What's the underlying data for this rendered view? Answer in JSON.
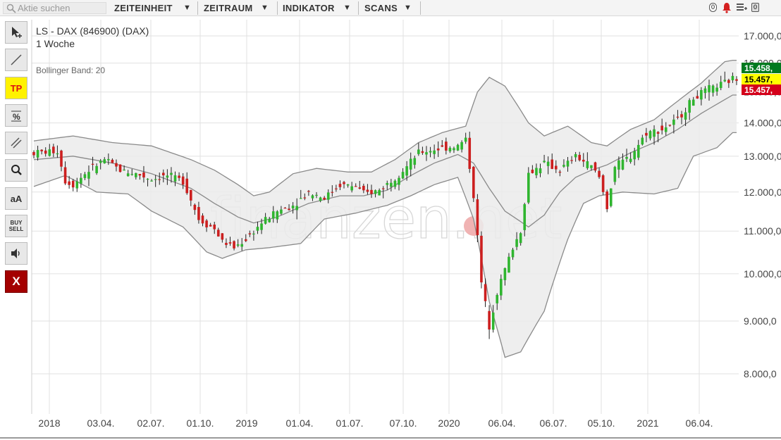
{
  "toolbar": {
    "search_placeholder": "Aktie suchen",
    "menus": [
      "ZEITEINHEIT",
      "ZEITRAUM",
      "INDIKATOR",
      "SCANS"
    ],
    "badge_alerts": "0",
    "badge_lists": "0"
  },
  "tools": {
    "pointer": "pointer-icon",
    "line": "line-icon",
    "tp": "TP",
    "percent": "%",
    "parallel": "parallel-lines-icon",
    "zoom": "zoom-icon",
    "text": "aA",
    "buy": "BUY",
    "sell": "SELL",
    "sound": "speaker-icon",
    "close": "X"
  },
  "chart": {
    "title": "LS - DAX (846900) (DAX)",
    "timeframe": "1 Woche",
    "indicator": "Bollinger Band: 20",
    "watermark": "finanzen.net",
    "price_tags": [
      {
        "label": "15.458,",
        "color": "#007a1f",
        "text": "#ffffff"
      },
      {
        "label": "15.457,",
        "color": "#ffff00",
        "text": "#000000"
      },
      {
        "label": "15.457,",
        "color": "#d4001a",
        "text": "#ffffff"
      }
    ],
    "colors": {
      "up": "#2fb52f",
      "down": "#cc1f1f",
      "band_fill": "#ebebeb",
      "band_line": "#8a8a8a",
      "grid": "#e1e1e1"
    }
  },
  "chart_data": {
    "type": "candlestick",
    "y_ticks": [
      "17.000,0",
      "16.000,0",
      "15.000,0",
      "14.000,0",
      "13.000,0",
      "12.000,0",
      "11.000,0",
      "10.000,0",
      "9.000,0",
      "8.000,0"
    ],
    "ylim": [
      7800,
      17300
    ],
    "y_scale": "log",
    "x_labels": [
      "2018",
      "03.04.",
      "02.07.",
      "01.10.",
      "2019",
      "01.04.",
      "01.07.",
      "07.10.",
      "2020",
      "06.04.",
      "06.07.",
      "05.10.",
      "2021",
      "06.04."
    ],
    "close_points": [
      [
        0,
        13100
      ],
      [
        6,
        13150
      ],
      [
        8,
        12300
      ],
      [
        10,
        12200
      ],
      [
        14,
        12600
      ],
      [
        18,
        12900
      ],
      [
        22,
        12600
      ],
      [
        26,
        12500
      ],
      [
        30,
        12350
      ],
      [
        34,
        12450
      ],
      [
        38,
        12300
      ],
      [
        42,
        11300
      ],
      [
        46,
        11050
      ],
      [
        48,
        10750
      ],
      [
        51,
        10600
      ],
      [
        54,
        10800
      ],
      [
        58,
        11200
      ],
      [
        62,
        11500
      ],
      [
        66,
        11650
      ],
      [
        70,
        12000
      ],
      [
        74,
        11850
      ],
      [
        78,
        12200
      ],
      [
        82,
        12150
      ],
      [
        84,
        11950
      ],
      [
        88,
        12050
      ],
      [
        92,
        12400
      ],
      [
        95,
        12700
      ],
      [
        98,
        13100
      ],
      [
        102,
        13200
      ],
      [
        105,
        13250
      ],
      [
        108,
        13300
      ],
      [
        110,
        13500
      ],
      [
        112,
        11900
      ],
      [
        114,
        9800
      ],
      [
        116,
        8900
      ],
      [
        118,
        9600
      ],
      [
        120,
        10100
      ],
      [
        122,
        10600
      ],
      [
        124,
        11000
      ],
      [
        126,
        12500
      ],
      [
        130,
        12800
      ],
      [
        134,
        12600
      ],
      [
        138,
        13000
      ],
      [
        142,
        12700
      ],
      [
        144,
        12400
      ],
      [
        146,
        11600
      ],
      [
        148,
        12700
      ],
      [
        152,
        13000
      ],
      [
        156,
        13700
      ],
      [
        160,
        13800
      ],
      [
        164,
        14100
      ],
      [
        168,
        14800
      ],
      [
        172,
        15100
      ],
      [
        176,
        15300
      ],
      [
        178,
        15458
      ]
    ],
    "bollinger_upper": [
      [
        0,
        13450
      ],
      [
        10,
        13600
      ],
      [
        20,
        13400
      ],
      [
        30,
        13300
      ],
      [
        40,
        12900
      ],
      [
        46,
        12600
      ],
      [
        52,
        12200
      ],
      [
        56,
        11900
      ],
      [
        60,
        12000
      ],
      [
        66,
        12500
      ],
      [
        72,
        12650
      ],
      [
        80,
        12550
      ],
      [
        86,
        12550
      ],
      [
        92,
        12900
      ],
      [
        98,
        13400
      ],
      [
        104,
        13700
      ],
      [
        110,
        13900
      ],
      [
        113,
        15000
      ],
      [
        116,
        15500
      ],
      [
        120,
        15200
      ],
      [
        126,
        14000
      ],
      [
        130,
        13600
      ],
      [
        136,
        13900
      ],
      [
        142,
        13400
      ],
      [
        146,
        13300
      ],
      [
        152,
        13800
      ],
      [
        158,
        14100
      ],
      [
        164,
        14700
      ],
      [
        170,
        15300
      ],
      [
        176,
        16050
      ],
      [
        178,
        16100
      ]
    ],
    "bollinger_middle": [
      [
        0,
        12900
      ],
      [
        10,
        13000
      ],
      [
        20,
        12800
      ],
      [
        30,
        12500
      ],
      [
        40,
        12100
      ],
      [
        46,
        11700
      ],
      [
        52,
        11350
      ],
      [
        56,
        11200
      ],
      [
        62,
        11350
      ],
      [
        70,
        11700
      ],
      [
        78,
        11900
      ],
      [
        84,
        11900
      ],
      [
        90,
        12050
      ],
      [
        96,
        12450
      ],
      [
        102,
        12800
      ],
      [
        108,
        13050
      ],
      [
        112,
        12800
      ],
      [
        116,
        12100
      ],
      [
        120,
        11500
      ],
      [
        126,
        11100
      ],
      [
        130,
        11400
      ],
      [
        134,
        12000
      ],
      [
        138,
        12400
      ],
      [
        142,
        12600
      ],
      [
        146,
        12750
      ],
      [
        152,
        13100
      ],
      [
        158,
        13400
      ],
      [
        164,
        13800
      ],
      [
        170,
        14300
      ],
      [
        176,
        14750
      ],
      [
        178,
        14900
      ]
    ],
    "bollinger_lower": [
      [
        0,
        12150
      ],
      [
        8,
        12450
      ],
      [
        16,
        12000
      ],
      [
        24,
        11950
      ],
      [
        30,
        11500
      ],
      [
        38,
        11100
      ],
      [
        44,
        10500
      ],
      [
        48,
        10350
      ],
      [
        54,
        10550
      ],
      [
        60,
        10600
      ],
      [
        68,
        10700
      ],
      [
        74,
        11300
      ],
      [
        82,
        11450
      ],
      [
        90,
        11650
      ],
      [
        96,
        11900
      ],
      [
        102,
        12200
      ],
      [
        108,
        12400
      ],
      [
        112,
        11300
      ],
      [
        116,
        9400
      ],
      [
        120,
        8300
      ],
      [
        124,
        8400
      ],
      [
        130,
        9200
      ],
      [
        136,
        10800
      ],
      [
        140,
        11700
      ],
      [
        144,
        11900
      ],
      [
        150,
        12000
      ],
      [
        158,
        11950
      ],
      [
        164,
        12100
      ],
      [
        168,
        13000
      ],
      [
        174,
        13250
      ],
      [
        178,
        13700
      ]
    ]
  }
}
